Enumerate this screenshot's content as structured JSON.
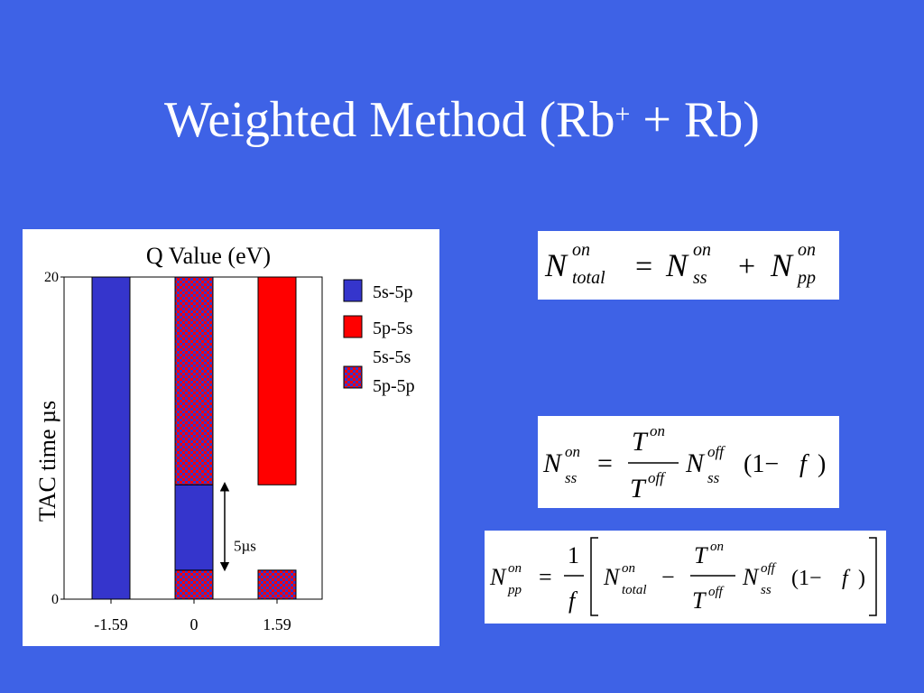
{
  "slide": {
    "title_main": "Weighted Method (Rb",
    "title_sup": "+",
    "title_end": " + Rb)",
    "background": "#3e62e6"
  },
  "chart_data": {
    "type": "bar",
    "title": "Q Value (eV)",
    "ylabel": "TAC time µs",
    "xlabel": "",
    "categories": [
      "-1.59",
      "0",
      "1.59"
    ],
    "ylim": [
      0,
      20
    ],
    "yticks": [
      "0",
      "20"
    ],
    "segments": [
      {
        "category": "-1.59",
        "series": "5s-5p",
        "from": 0,
        "to": 20
      },
      {
        "category": "0",
        "series": "5s-5s 5p-5p",
        "from": 0,
        "to": 1.8
      },
      {
        "category": "0",
        "series": "5s-5p",
        "from": 1.8,
        "to": 7.1
      },
      {
        "category": "0",
        "series": "5s-5s 5p-5p",
        "from": 7.1,
        "to": 20
      },
      {
        "category": "1.59",
        "series": "5s-5s 5p-5p",
        "from": 0,
        "to": 1.8
      },
      {
        "category": "1.59",
        "series": "5p-5s",
        "from": 7.1,
        "to": 20
      }
    ],
    "legend": [
      {
        "label": "5s-5p",
        "color": "#3535cc"
      },
      {
        "label": "5p-5s",
        "color": "#ff0000"
      },
      {
        "label_lines": [
          "5s-5s",
          "5p-5p"
        ],
        "color": "checker"
      }
    ],
    "legend_position": "right",
    "annotation": {
      "label": "5µs",
      "from": 0,
      "to": 7.1
    },
    "colors": {
      "blue": "#3535cc",
      "red": "#ff0000"
    }
  },
  "equations": {
    "eq1": {
      "N": "N",
      "on": "on",
      "total": "total",
      "ss": "ss",
      "pp": "pp"
    },
    "eq2": {
      "N": "N",
      "T": "T",
      "on": "on",
      "off": "off",
      "ss": "ss",
      "one_minus": "(1−",
      "f": "f",
      "close": ")"
    },
    "eq3": {
      "N": "N",
      "T": "T",
      "one": "1",
      "f": "f",
      "on": "on",
      "off": "off",
      "pp": "pp",
      "ss": "ss",
      "total": "total",
      "one_minus": "(1−",
      "close": ")"
    }
  }
}
